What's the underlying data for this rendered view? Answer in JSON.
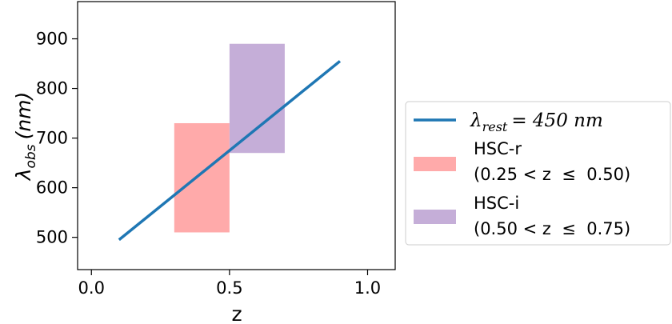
{
  "chart_data": {
    "type": "line",
    "xlabel": "z",
    "ylabel_symbol": "λ",
    "ylabel_sub": "obs",
    "ylabel_unit": "(nm)",
    "xlim": [
      -0.05,
      1.1
    ],
    "ylim": [
      435,
      975
    ],
    "xticks": [
      0.0,
      0.5,
      1.0
    ],
    "xtick_labels": [
      "0.0",
      "0.5",
      "1.0"
    ],
    "yticks": [
      500,
      600,
      700,
      800,
      900
    ],
    "ytick_labels": [
      "500",
      "600",
      "700",
      "800",
      "900"
    ],
    "grid": false,
    "legend_position": "outside-right",
    "series": [
      {
        "name_symbol": "λ",
        "name_sub": "rest",
        "name_rest": "= 450 nm",
        "color": "#1f77b4",
        "x": [
          0.1,
          0.9
        ],
        "y": [
          495,
          855
        ]
      }
    ],
    "regions": [
      {
        "name": "HSC-r",
        "range_label": "(0.25 < z  ≤  0.50)",
        "color": "#ffaaaa",
        "x": [
          0.3,
          0.5
        ],
        "y": [
          510,
          730
        ]
      },
      {
        "name": "HSC-i",
        "range_label": "(0.50 < z  ≤  0.75)",
        "color": "#c5aed8",
        "x": [
          0.5,
          0.7
        ],
        "y": [
          670,
          890
        ]
      }
    ]
  }
}
